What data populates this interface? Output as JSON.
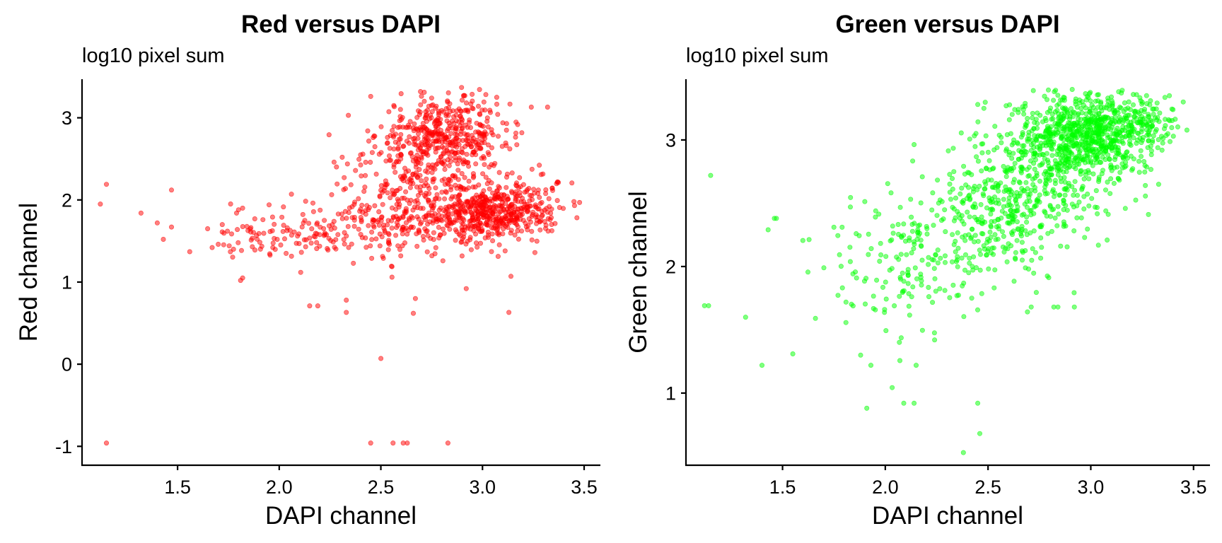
{
  "chart_data": [
    {
      "type": "scatter",
      "title": "Red versus DAPI",
      "subtitle": "log10 pixel sum",
      "xlabel": "DAPI channel",
      "ylabel": "Red channel",
      "xlim": [
        1.03,
        3.58
      ],
      "ylim": [
        -1.23,
        3.47
      ],
      "x_ticks": [
        1.5,
        2.0,
        2.5,
        3.0,
        3.5
      ],
      "x_tick_labels": [
        "1.5",
        "2.0",
        "2.5",
        "3.0",
        "3.5"
      ],
      "y_ticks": [
        -1,
        0,
        1,
        2,
        3
      ],
      "y_tick_labels": [
        "-1",
        "0",
        "1",
        "2",
        "3"
      ],
      "point_color": "#ff0000",
      "grid": false,
      "legend": "none",
      "points": [
        [
          1.12,
          1.95
        ],
        [
          1.15,
          2.19
        ],
        [
          1.15,
          -0.96
        ],
        [
          1.32,
          1.84
        ],
        [
          1.4,
          1.72
        ],
        [
          1.43,
          1.52
        ],
        [
          1.47,
          2.12
        ],
        [
          1.47,
          1.67
        ],
        [
          1.56,
          1.37
        ],
        [
          1.67,
          1.42
        ],
        [
          1.7,
          1.46
        ],
        [
          1.72,
          1.7
        ],
        [
          1.76,
          1.37
        ],
        [
          1.79,
          1.84
        ],
        [
          1.8,
          1.88
        ],
        [
          1.81,
          1.02
        ],
        [
          1.82,
          1.05
        ],
        [
          1.82,
          1.9
        ],
        [
          1.86,
          1.61
        ],
        [
          1.88,
          1.77
        ],
        [
          1.9,
          1.59
        ],
        [
          1.92,
          1.76
        ],
        [
          1.95,
          1.94
        ],
        [
          1.99,
          1.52
        ],
        [
          2.04,
          1.66
        ],
        [
          2.06,
          2.07
        ],
        [
          2.09,
          1.56
        ],
        [
          2.13,
          1.43
        ],
        [
          2.15,
          0.71
        ],
        [
          2.19,
          0.71
        ],
        [
          2.24,
          1.39
        ],
        [
          2.27,
          2.46
        ],
        [
          2.31,
          2.52
        ],
        [
          2.33,
          0.63
        ],
        [
          2.33,
          0.78
        ],
        [
          2.34,
          3.03
        ],
        [
          2.45,
          3.26
        ],
        [
          2.5,
          0.07
        ],
        [
          2.66,
          0.62
        ],
        [
          2.67,
          0.8
        ],
        [
          2.45,
          -0.96
        ],
        [
          2.56,
          -0.96
        ],
        [
          2.61,
          -0.96
        ],
        [
          2.63,
          -0.96
        ],
        [
          2.83,
          -0.96
        ],
        [
          2.92,
          0.92
        ],
        [
          3.13,
          0.63
        ],
        [
          3.14,
          1.07
        ],
        [
          3.24,
          3.13
        ],
        [
          3.32,
          3.13
        ],
        [
          3.45,
          1.98
        ],
        [
          3.37,
          2.22
        ],
        [
          2.75,
          3.24
        ],
        [
          2.98,
          3.14
        ],
        [
          3.07,
          3.25
        ]
      ],
      "point_clusters": [
        {
          "cx": 2.82,
          "cy": 2.78,
          "sx": 0.16,
          "sy": 0.24,
          "n": 420
        },
        {
          "cx": 3.04,
          "cy": 1.85,
          "sx": 0.14,
          "sy": 0.16,
          "n": 420
        },
        {
          "cx": 2.62,
          "cy": 1.72,
          "sx": 0.22,
          "sy": 0.22,
          "n": 220
        },
        {
          "cx": 2.7,
          "cy": 2.25,
          "sx": 0.2,
          "sy": 0.32,
          "n": 180
        },
        {
          "cx": 2.05,
          "cy": 1.6,
          "sx": 0.2,
          "sy": 0.15,
          "n": 90
        },
        {
          "cx": 3.27,
          "cy": 1.95,
          "sx": 0.1,
          "sy": 0.22,
          "n": 60
        }
      ]
    },
    {
      "type": "scatter",
      "title": "Green versus DAPI",
      "subtitle": "log10 pixel sum",
      "xlabel": "DAPI channel",
      "ylabel": "Green channel",
      "xlim": [
        1.03,
        3.58
      ],
      "ylim": [
        0.43,
        3.48
      ],
      "x_ticks": [
        1.5,
        2.0,
        2.5,
        3.0,
        3.5
      ],
      "x_tick_labels": [
        "1.5",
        "2.0",
        "2.5",
        "3.0",
        "3.5"
      ],
      "y_ticks": [
        1,
        2,
        3
      ],
      "y_tick_labels": [
        "1",
        "2",
        "3"
      ],
      "point_color": "#00ff00",
      "grid": false,
      "legend": "none",
      "points": [
        [
          1.12,
          1.69
        ],
        [
          1.14,
          1.69
        ],
        [
          1.15,
          2.72
        ],
        [
          1.32,
          1.6
        ],
        [
          1.4,
          1.22
        ],
        [
          1.43,
          2.29
        ],
        [
          1.46,
          2.38
        ],
        [
          1.47,
          2.38
        ],
        [
          1.55,
          1.31
        ],
        [
          1.66,
          1.59
        ],
        [
          1.75,
          2.31
        ],
        [
          1.79,
          2.31
        ],
        [
          1.83,
          2.47
        ],
        [
          1.86,
          1.91
        ],
        [
          1.88,
          1.3
        ],
        [
          1.91,
          0.88
        ],
        [
          1.93,
          1.22
        ],
        [
          2.09,
          0.92
        ],
        [
          2.14,
          0.92
        ],
        [
          2.15,
          1.22
        ],
        [
          2.24,
          1.42
        ],
        [
          2.38,
          0.53
        ],
        [
          2.45,
          0.92
        ],
        [
          2.46,
          0.68
        ],
        [
          2.45,
          3.28
        ],
        [
          2.63,
          3.24
        ],
        [
          2.71,
          1.68
        ],
        [
          2.84,
          1.68
        ],
        [
          2.82,
          1.68
        ],
        [
          2.92,
          1.68
        ],
        [
          3.33,
          2.65
        ],
        [
          3.45,
          3.3
        ],
        [
          3.4,
          3.24
        ],
        [
          3.1,
          3.34
        ]
      ],
      "point_clusters": [
        {
          "cx": 3.02,
          "cy": 3.06,
          "sx": 0.15,
          "sy": 0.15,
          "n": 560
        },
        {
          "cx": 2.82,
          "cy": 2.8,
          "sx": 0.18,
          "sy": 0.24,
          "n": 420
        },
        {
          "cx": 2.55,
          "cy": 2.45,
          "sx": 0.18,
          "sy": 0.24,
          "n": 260
        },
        {
          "cx": 2.25,
          "cy": 2.1,
          "sx": 0.2,
          "sy": 0.26,
          "n": 130
        },
        {
          "cx": 2.0,
          "cy": 1.9,
          "sx": 0.18,
          "sy": 0.28,
          "n": 60
        },
        {
          "cx": 3.25,
          "cy": 3.15,
          "sx": 0.1,
          "sy": 0.1,
          "n": 80
        }
      ]
    }
  ]
}
